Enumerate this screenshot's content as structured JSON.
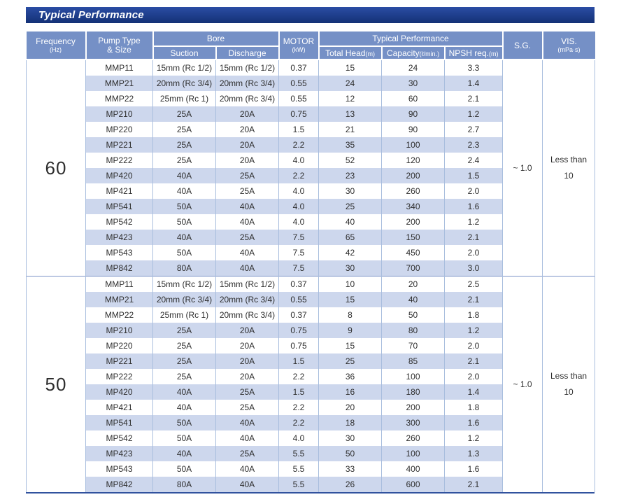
{
  "title": "Typical Performance",
  "colors": {
    "title_bar_top": "#2b4da4",
    "title_bar_bottom": "#143176",
    "header_bg": "#7590c6",
    "header_text": "#ffffff",
    "stripe": "#cdd7ed",
    "grid_line": "#a9bede",
    "section_divider": "#7b93c7",
    "bottom_border": "#31529e",
    "text": "#2e2e2e"
  },
  "table": {
    "headers": {
      "frequency": "Frequency",
      "frequency_unit": "(Hz)",
      "pump_type_line1": "Pump Type",
      "pump_type_line2": "& Size",
      "bore": "Bore",
      "suction": "Suction",
      "discharge": "Discharge",
      "motor": "MOTOR",
      "motor_unit": "(kW)",
      "typical_performance": "Typical Performance",
      "total_head": "Total Head",
      "total_head_unit": "(m)",
      "capacity": "Capacity",
      "capacity_unit": "(ℓ/min.)",
      "npsh": "NPSH req.",
      "npsh_unit": "(m)",
      "sg": "S.G.",
      "vis": "VIS.",
      "vis_unit": "(mPa·s)"
    },
    "sections": [
      {
        "frequency": "60",
        "sg": "~ 1.0",
        "vis": "Less than\n10",
        "rows": [
          [
            "MMP11",
            "15mm (Rc 1/2)",
            "15mm (Rc 1/2)",
            "0.37",
            "15",
            "24",
            "3.3"
          ],
          [
            "MMP21",
            "20mm (Rc 3/4)",
            "20mm (Rc 3/4)",
            "0.55",
            "24",
            "30",
            "1.4"
          ],
          [
            "MMP22",
            "25mm (Rc 1)",
            "20mm (Rc 3/4)",
            "0.55",
            "12",
            "60",
            "2.1"
          ],
          [
            "MP210",
            "25A",
            "20A",
            "0.75",
            "13",
            "90",
            "1.2"
          ],
          [
            "MP220",
            "25A",
            "20A",
            "1.5",
            "21",
            "90",
            "2.7"
          ],
          [
            "MP221",
            "25A",
            "20A",
            "2.2",
            "35",
            "100",
            "2.3"
          ],
          [
            "MP222",
            "25A",
            "20A",
            "4.0",
            "52",
            "120",
            "2.4"
          ],
          [
            "MP420",
            "40A",
            "25A",
            "2.2",
            "23",
            "200",
            "1.5"
          ],
          [
            "MP421",
            "40A",
            "25A",
            "4.0",
            "30",
            "260",
            "2.0"
          ],
          [
            "MP541",
            "50A",
            "40A",
            "4.0",
            "25",
            "340",
            "1.6"
          ],
          [
            "MP542",
            "50A",
            "40A",
            "4.0",
            "40",
            "200",
            "1.2"
          ],
          [
            "MP423",
            "40A",
            "25A",
            "7.5",
            "65",
            "150",
            "2.1"
          ],
          [
            "MP543",
            "50A",
            "40A",
            "7.5",
            "42",
            "450",
            "2.0"
          ],
          [
            "MP842",
            "80A",
            "40A",
            "7.5",
            "30",
            "700",
            "3.0"
          ]
        ]
      },
      {
        "frequency": "50",
        "sg": "~ 1.0",
        "vis": "Less than\n10",
        "rows": [
          [
            "MMP11",
            "15mm (Rc 1/2)",
            "15mm (Rc 1/2)",
            "0.37",
            "10",
            "20",
            "2.5"
          ],
          [
            "MMP21",
            "20mm (Rc 3/4)",
            "20mm (Rc 3/4)",
            "0.55",
            "15",
            "40",
            "2.1"
          ],
          [
            "MMP22",
            "25mm (Rc 1)",
            "20mm (Rc 3/4)",
            "0.37",
            "8",
            "50",
            "1.8"
          ],
          [
            "MP210",
            "25A",
            "20A",
            "0.75",
            "9",
            "80",
            "1.2"
          ],
          [
            "MP220",
            "25A",
            "20A",
            "0.75",
            "15",
            "70",
            "2.0"
          ],
          [
            "MP221",
            "25A",
            "20A",
            "1.5",
            "25",
            "85",
            "2.1"
          ],
          [
            "MP222",
            "25A",
            "20A",
            "2.2",
            "36",
            "100",
            "2.0"
          ],
          [
            "MP420",
            "40A",
            "25A",
            "1.5",
            "16",
            "180",
            "1.4"
          ],
          [
            "MP421",
            "40A",
            "25A",
            "2.2",
            "20",
            "200",
            "1.8"
          ],
          [
            "MP541",
            "50A",
            "40A",
            "2.2",
            "18",
            "300",
            "1.6"
          ],
          [
            "MP542",
            "50A",
            "40A",
            "4.0",
            "30",
            "260",
            "1.2"
          ],
          [
            "MP423",
            "40A",
            "25A",
            "5.5",
            "50",
            "100",
            "1.3"
          ],
          [
            "MP543",
            "50A",
            "40A",
            "5.5",
            "33",
            "400",
            "1.6"
          ],
          [
            "MP842",
            "80A",
            "40A",
            "5.5",
            "26",
            "600",
            "2.1"
          ]
        ]
      }
    ]
  }
}
